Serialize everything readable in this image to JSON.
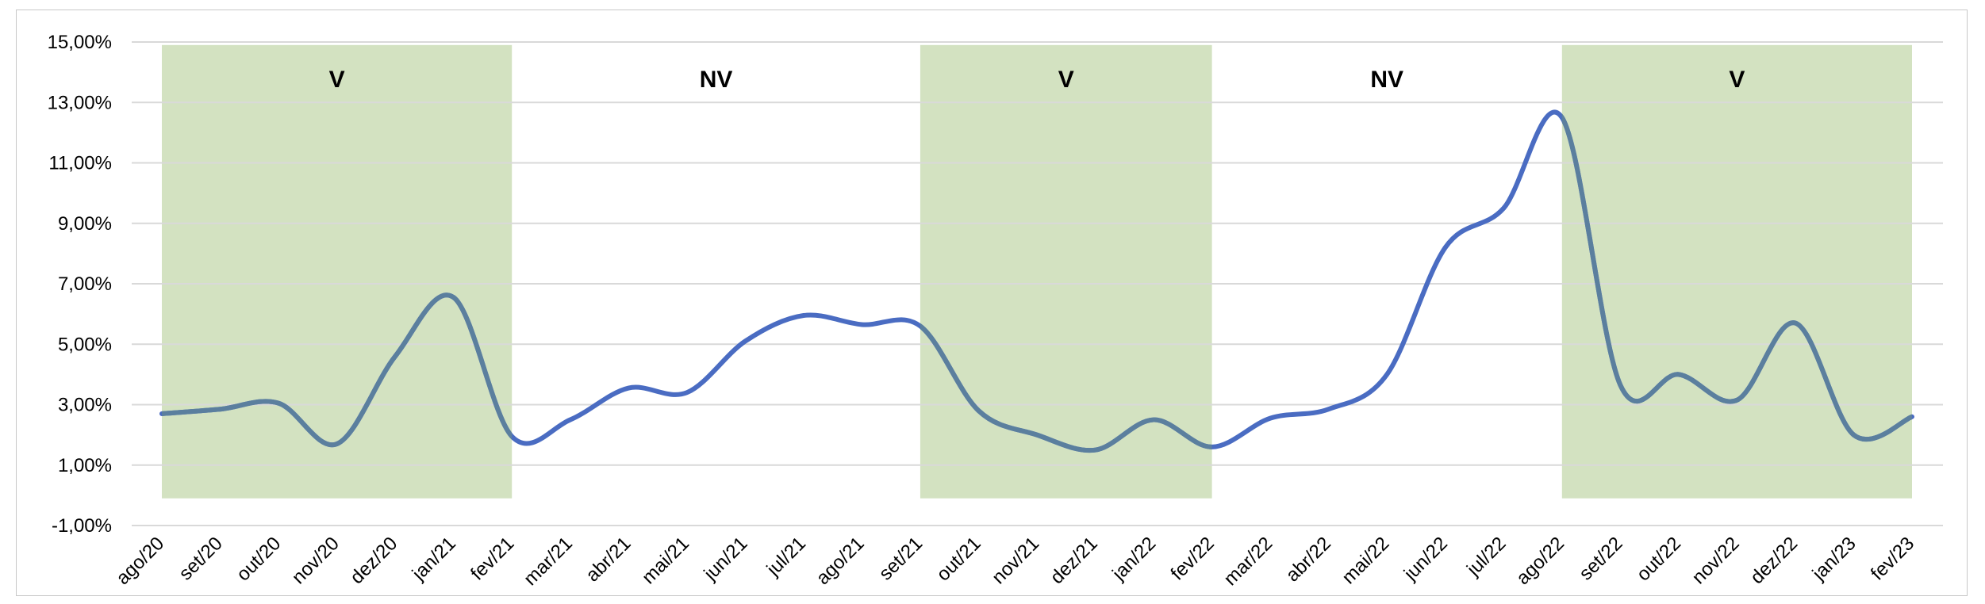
{
  "chart_data": {
    "type": "line",
    "title": "",
    "xlabel": "",
    "ylabel": "",
    "categories": [
      "ago/20",
      "set/20",
      "out/20",
      "nov/20",
      "dez/20",
      "jan/21",
      "fev/21",
      "mar/21",
      "abr/21",
      "mai/21",
      "jun/21",
      "jul/21",
      "ago/21",
      "set/21",
      "out/21",
      "nov/21",
      "dez/21",
      "jan/22",
      "fev/22",
      "mar/22",
      "abr/22",
      "mai/22",
      "jun/22",
      "jul/22",
      "ago/22",
      "set/22",
      "out/22",
      "nov/22",
      "dez/22",
      "jan/23",
      "fev/23"
    ],
    "series": [
      {
        "values": [
          2.7,
          2.85,
          3.05,
          1.7,
          4.6,
          6.55,
          1.95,
          2.5,
          3.55,
          3.4,
          5.1,
          5.95,
          5.65,
          5.6,
          2.8,
          2.0,
          1.5,
          2.5,
          1.6,
          2.55,
          2.85,
          4.0,
          8.2,
          9.5,
          12.5,
          3.65,
          4.0,
          3.15,
          5.7,
          2.0,
          2.6
        ]
      }
    ],
    "ylim": [
      -1,
      15
    ],
    "y_ticks": [
      "-1,00%",
      "1,00%",
      "3,00%",
      "5,00%",
      "7,00%",
      "9,00%",
      "11,00%",
      "13,00%",
      "15,00%"
    ],
    "grid": true,
    "legend": "none",
    "bands": [
      {
        "label": "V",
        "start": "ago/20",
        "end": "fev/21",
        "shaded": true
      },
      {
        "label": "NV",
        "start": "fev/21",
        "end": "set/21",
        "shaded": false
      },
      {
        "label": "V",
        "start": "set/21",
        "end": "fev/22",
        "shaded": true
      },
      {
        "label": "NV",
        "start": "fev/22",
        "end": "ago/22",
        "shaded": false
      },
      {
        "label": "V",
        "start": "ago/22",
        "end": "fev/23",
        "shaded": true
      }
    ],
    "colors": {
      "band_fill": "#d3e2c1",
      "grid": "#d9d9d9",
      "line_in_band": "#5b7f9e",
      "line_default": "#4a6cc2"
    }
  }
}
